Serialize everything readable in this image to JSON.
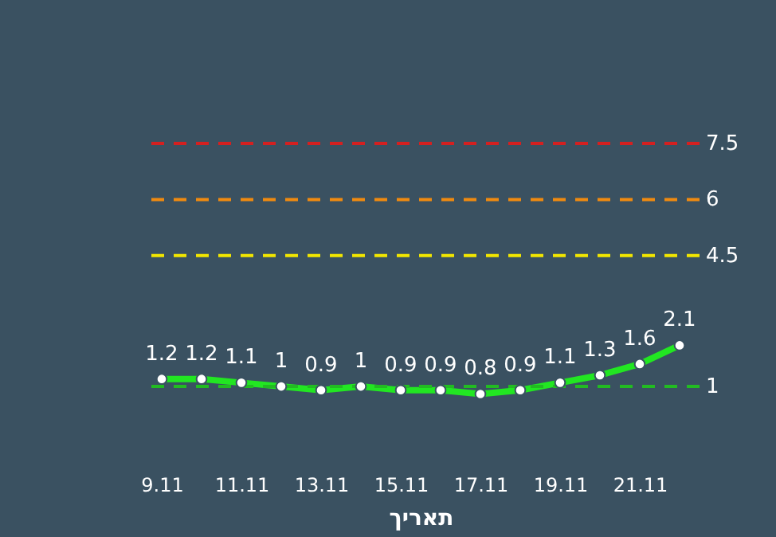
{
  "chart_data": {
    "type": "line",
    "xlabel": "תאריך",
    "categories": [
      "9.11",
      null,
      "11.11",
      null,
      "13.11",
      null,
      "15.11",
      null,
      "17.11",
      null,
      "19.11",
      null,
      "21.11",
      null
    ],
    "series": [
      {
        "color": "#22e622",
        "values": [
          1.2,
          1.2,
          1.1,
          1,
          0.9,
          1,
          0.9,
          0.9,
          0.8,
          0.9,
          1.1,
          1.3,
          1.6,
          2.1
        ]
      }
    ],
    "tick_labels": "x",
    "grid": false,
    "marker": "circle",
    "data_labels": true,
    "ref_lines": [
      {
        "axis": "y",
        "value": 7.5,
        "label": "7.5",
        "color": "#d42020",
        "line_style": "dashed"
      },
      {
        "axis": "y",
        "value": 6,
        "label": "6",
        "color": "#f08a10",
        "line_style": "dashed"
      },
      {
        "axis": "y",
        "value": 4.5,
        "label": "4.5",
        "color": "#f2e600",
        "line_style": "dashed"
      },
      {
        "axis": "y",
        "value": 1,
        "label": "1",
        "color": "#22bb22",
        "line_style": "dashed"
      }
    ]
  }
}
